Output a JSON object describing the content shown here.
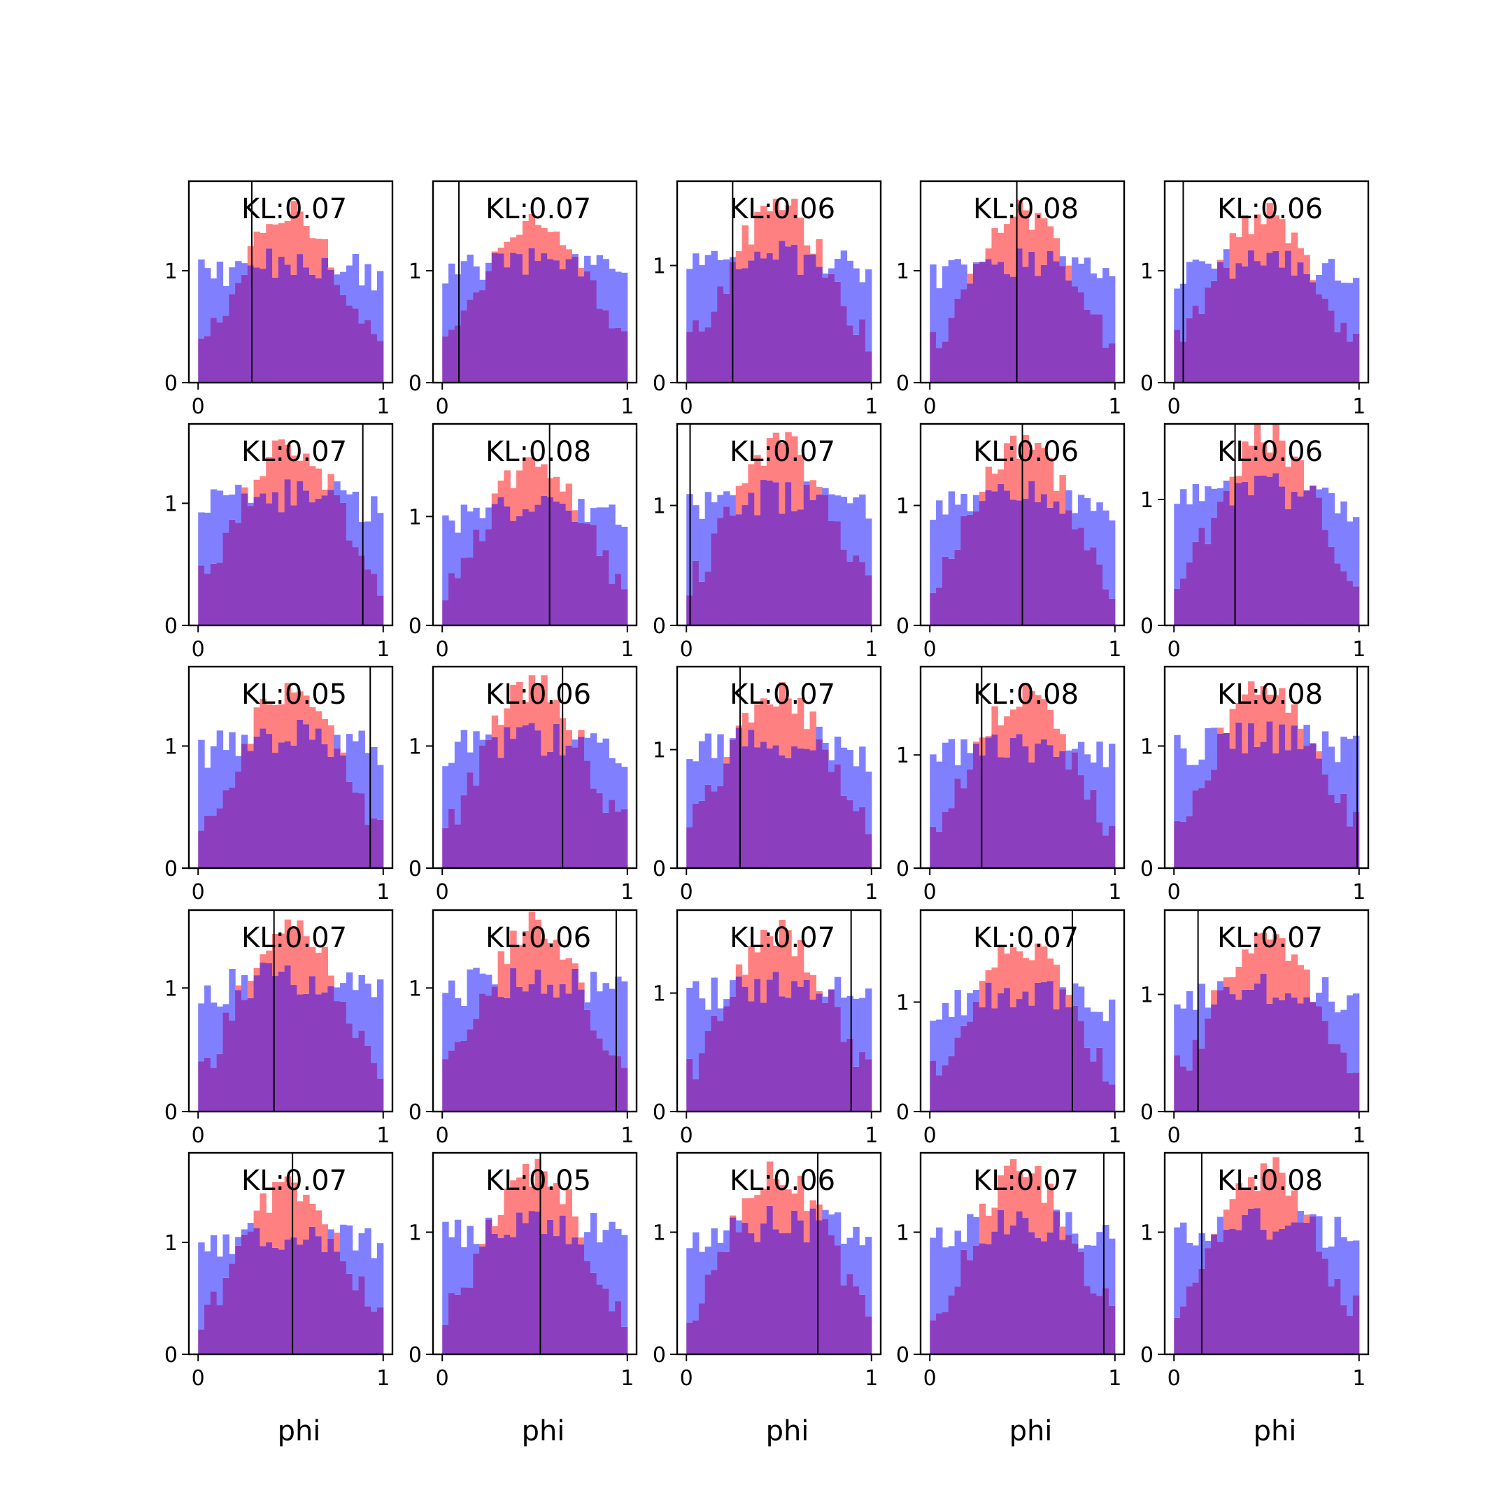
{
  "chart_data": {
    "type": "histogram-grid",
    "rows": 5,
    "cols": 5,
    "xlabel": "phi",
    "xlim": [
      -0.05,
      1.05
    ],
    "xticks": [
      0,
      1
    ],
    "bins": 30,
    "colors": {
      "red": "#ff0000",
      "blue": "#0000ff",
      "overlap": "#8b3fbf",
      "vline": "#000000"
    },
    "series_order": [
      "blue",
      "red"
    ],
    "panels": [
      {
        "kl": "KL:0.07",
        "ylim": [
          0,
          1.8
        ],
        "yticks": [
          0,
          1
        ],
        "vline": 0.29
      },
      {
        "kl": "KL:0.07",
        "ylim": [
          0,
          1.8
        ],
        "yticks": [
          0,
          1
        ],
        "vline": 0.09
      },
      {
        "kl": "KL:0.06",
        "ylim": [
          0,
          1.72
        ],
        "yticks": [
          0,
          1
        ],
        "vline": 0.25
      },
      {
        "kl": "KL:0.08",
        "ylim": [
          0,
          1.8
        ],
        "yticks": [
          0,
          1
        ],
        "vline": 0.47
      },
      {
        "kl": "KL:0.06",
        "ylim": [
          0,
          1.8
        ],
        "yticks": [
          0,
          1
        ],
        "vline": 0.05
      },
      {
        "kl": "KL:0.07",
        "ylim": [
          0,
          1.65
        ],
        "yticks": [
          0,
          1
        ],
        "vline": 0.89
      },
      {
        "kl": "KL:0.08",
        "ylim": [
          0,
          1.85
        ],
        "yticks": [
          0,
          1
        ],
        "vline": 0.58
      },
      {
        "kl": "KL:0.07",
        "ylim": [
          0,
          1.68
        ],
        "yticks": [
          0,
          1
        ],
        "vline": 0.02
      },
      {
        "kl": "KL:0.06",
        "ylim": [
          0,
          1.68
        ],
        "yticks": [
          0,
          1
        ],
        "vline": 0.5
      },
      {
        "kl": "KL:0.06",
        "ylim": [
          0,
          1.6
        ],
        "yticks": [
          0,
          1
        ],
        "vline": 0.33
      },
      {
        "kl": "KL:0.05",
        "ylim": [
          0,
          1.65
        ],
        "yticks": [
          0,
          1
        ],
        "vline": 0.93
      },
      {
        "kl": "KL:0.06",
        "ylim": [
          0,
          1.65
        ],
        "yticks": [
          0,
          1
        ],
        "vline": 0.65
      },
      {
        "kl": "KL:0.07",
        "ylim": [
          0,
          1.7
        ],
        "yticks": [
          0,
          1
        ],
        "vline": 0.29
      },
      {
        "kl": "KL:0.08",
        "ylim": [
          0,
          1.78
        ],
        "yticks": [
          0,
          1
        ],
        "vline": 0.28
      },
      {
        "kl": "KL:0.08",
        "ylim": [
          0,
          1.65
        ],
        "yticks": [
          0,
          1
        ],
        "vline": 0.99
      },
      {
        "kl": "KL:0.07",
        "ylim": [
          0,
          1.63
        ],
        "yticks": [
          0,
          1
        ],
        "vline": 0.41
      },
      {
        "kl": "KL:0.06",
        "ylim": [
          0,
          1.63
        ],
        "yticks": [
          0,
          1
        ],
        "vline": 0.94
      },
      {
        "kl": "KL:0.07",
        "ylim": [
          0,
          1.7
        ],
        "yticks": [
          0,
          1
        ],
        "vline": 0.89
      },
      {
        "kl": "KL:0.07",
        "ylim": [
          0,
          1.84
        ],
        "yticks": [
          0,
          1
        ],
        "vline": 0.77
      },
      {
        "kl": "KL:0.07",
        "ylim": [
          0,
          1.72
        ],
        "yticks": [
          0,
          1
        ],
        "vline": 0.13
      },
      {
        "kl": "KL:0.07",
        "ylim": [
          0,
          1.8
        ],
        "yticks": [
          0,
          1
        ],
        "vline": 0.51
      },
      {
        "kl": "KL:0.05",
        "ylim": [
          0,
          1.65
        ],
        "yticks": [
          0,
          1
        ],
        "vline": 0.53
      },
      {
        "kl": "KL:0.06",
        "ylim": [
          0,
          1.65
        ],
        "yticks": [
          0,
          1
        ],
        "vline": 0.71
      },
      {
        "kl": "KL:0.07",
        "ylim": [
          0,
          1.65
        ],
        "yticks": [
          0,
          1
        ],
        "vline": 0.94
      },
      {
        "kl": "KL:0.08",
        "ylim": [
          0,
          1.65
        ],
        "yticks": [
          0,
          1
        ],
        "vline": 0.15
      }
    ]
  }
}
